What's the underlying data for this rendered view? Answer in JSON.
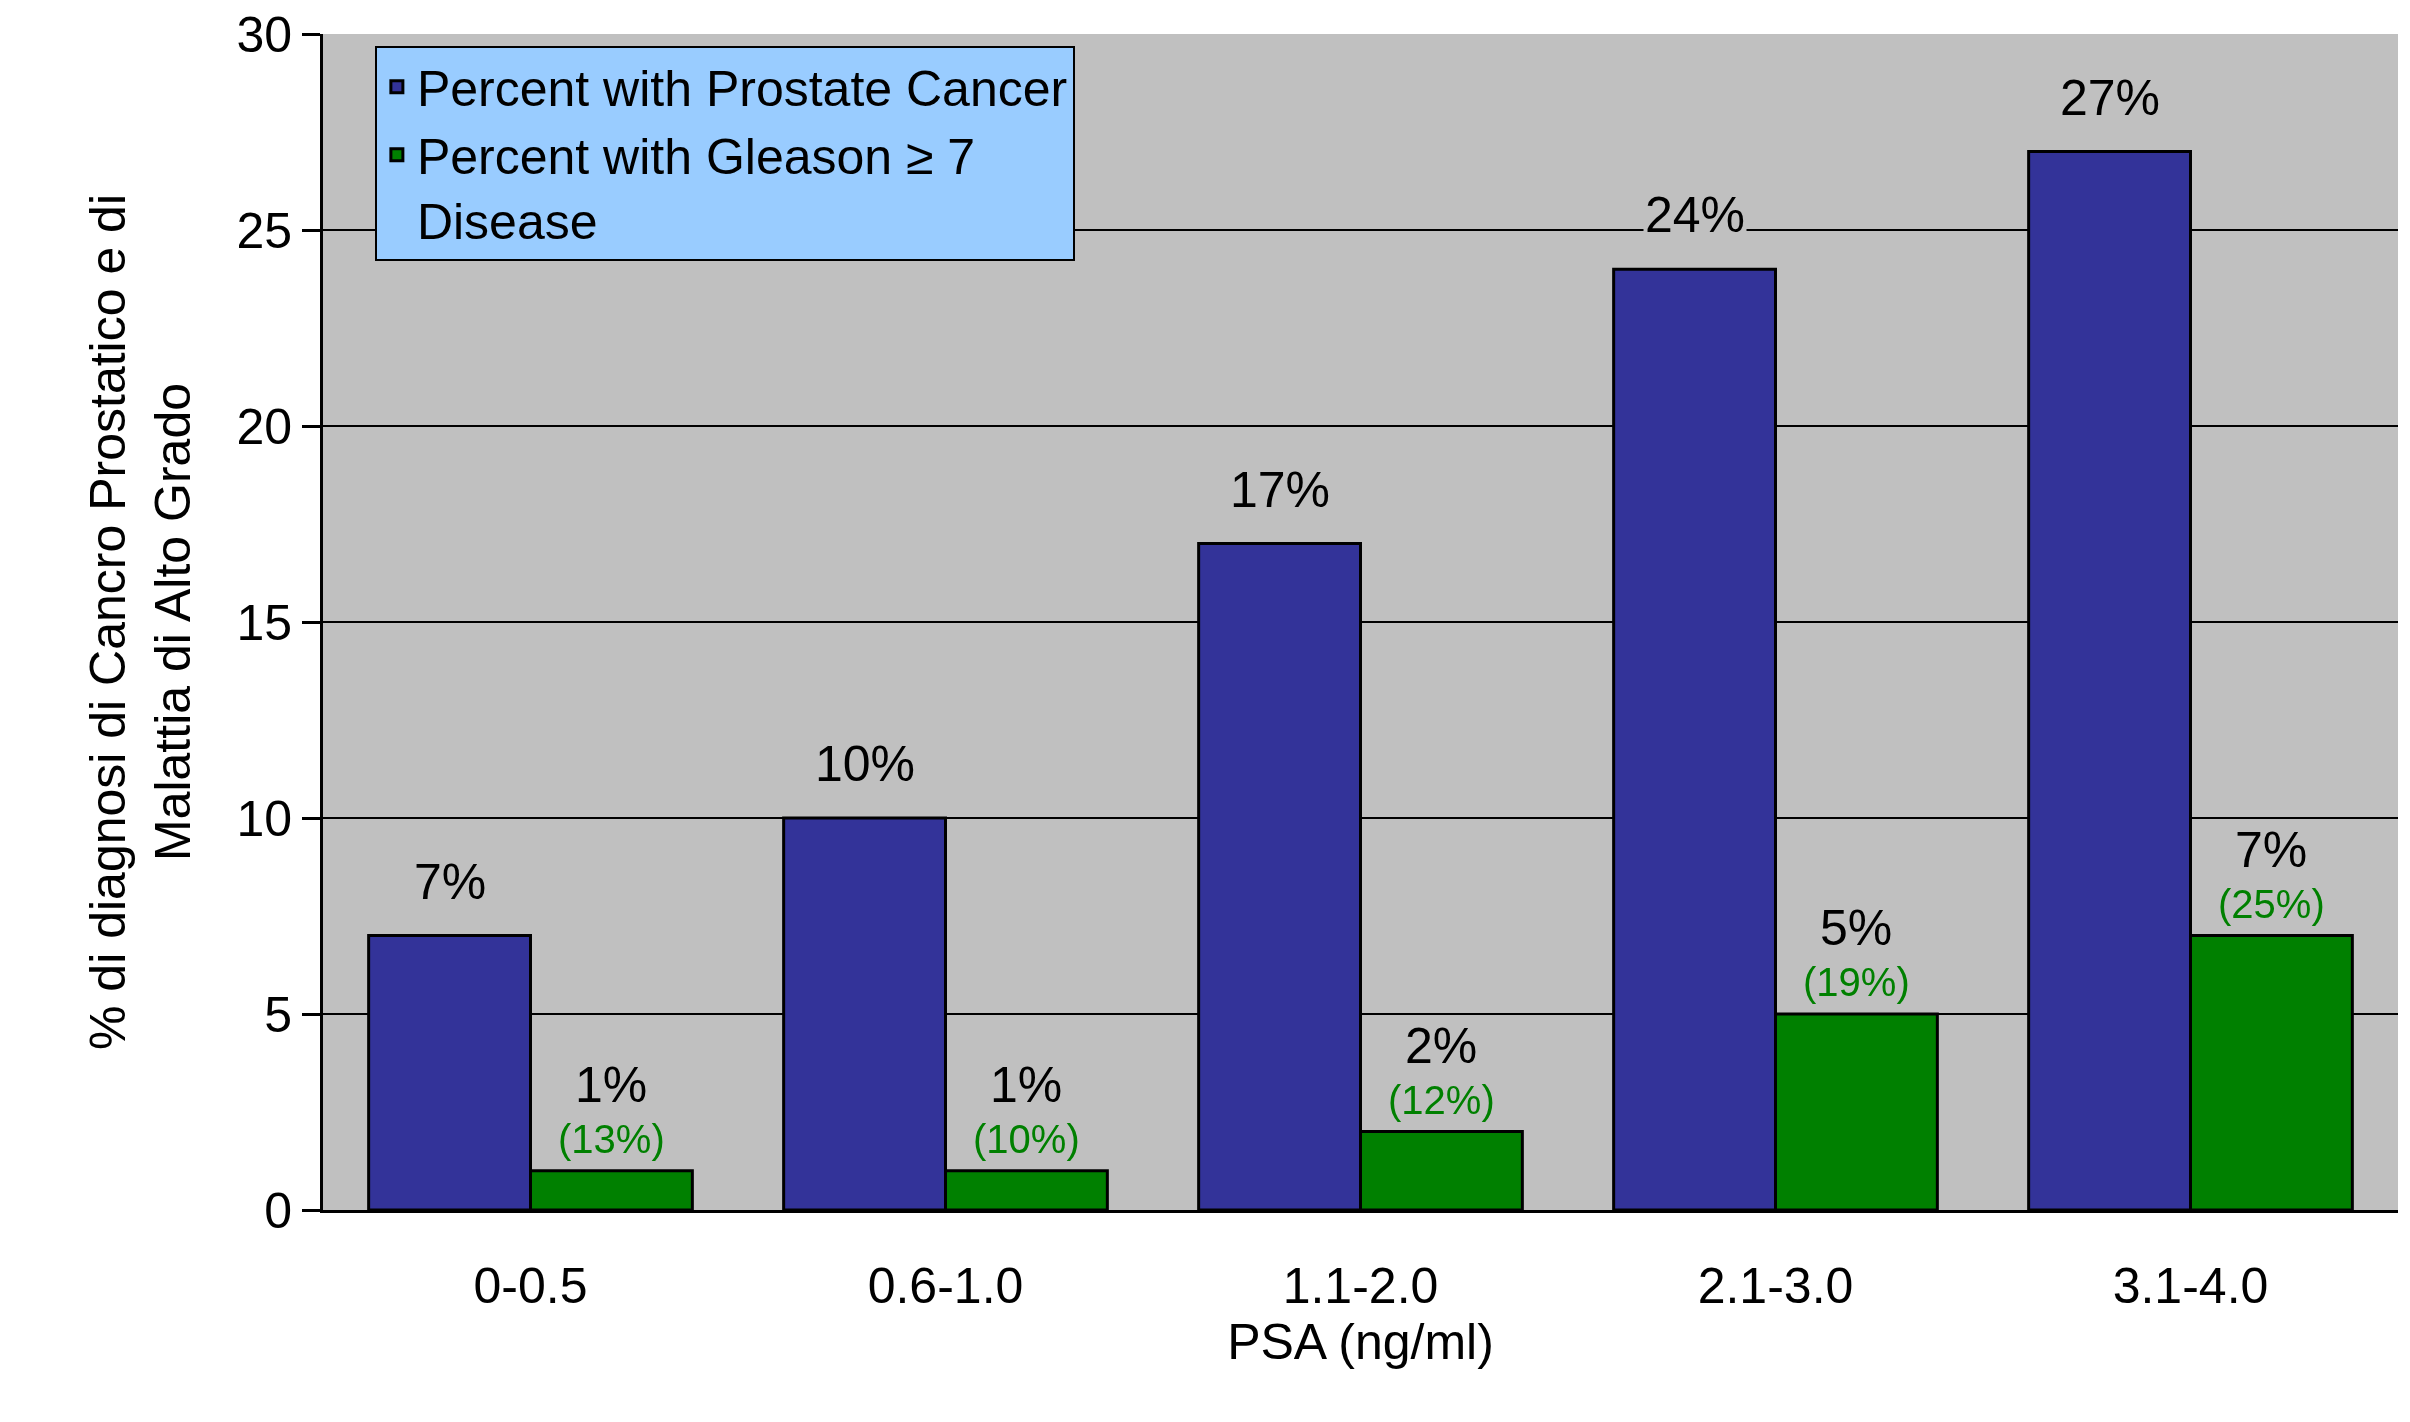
{
  "chart_data": {
    "type": "bar",
    "xlabel": "PSA (ng/ml)",
    "ylabel": "% di diagnosi di Cancro Prostatico e di\nMalattia di Alto Grado",
    "categories": [
      "0-0.5",
      "0.6-1.0",
      "1.1-2.0",
      "2.1-3.0",
      "3.1-4.0"
    ],
    "series": [
      {
        "name": "Percent with Prostate Cancer",
        "color": "#333399",
        "values": [
          7,
          10,
          17,
          24,
          27
        ],
        "value_labels": [
          "7%",
          "10%",
          "17%",
          "24%",
          "27%"
        ]
      },
      {
        "name": "Percent with Gleason ≥ 7 Disease",
        "color": "#008000",
        "values": [
          1,
          1,
          2,
          5,
          7
        ],
        "value_labels": [
          "1%",
          "1%",
          "2%",
          "5%",
          "7%"
        ]
      }
    ],
    "annotations": [
      {
        "text": "(13%)",
        "x": "0-0.5",
        "y": 1
      },
      {
        "text": "(10%)",
        "x": "0.6-1.0",
        "y": 1
      },
      {
        "text": "(12%)",
        "x": "1.1-2.0",
        "y": 2
      },
      {
        "text": "(19%)",
        "x": "2.1-3.0",
        "y": 5
      },
      {
        "text": "(25%)",
        "x": "3.1-4.0",
        "y": 7
      }
    ],
    "ylim": [
      0,
      30
    ],
    "yticks": [
      0,
      5,
      10,
      15,
      20,
      25,
      30
    ],
    "grid": "y",
    "legend": "top left"
  }
}
